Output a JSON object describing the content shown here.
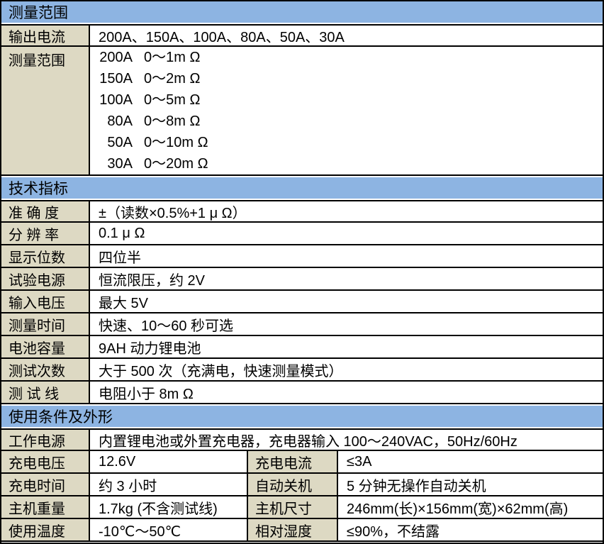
{
  "colors": {
    "header_bg": "#8DB4E2",
    "label_bg": "#DDD9C3",
    "border": "#000000"
  },
  "table": {
    "section1": {
      "title": "测量范围",
      "rows": [
        {
          "label": "输出电流",
          "value": "200A、150A、100A、80A、50A、30A"
        }
      ],
      "range_label": "测量范围",
      "ranges": [
        {
          "current": "200A",
          "range": "0～1m Ω"
        },
        {
          "current": "150A",
          "range": "0～2m Ω"
        },
        {
          "current": "100A",
          "range": "0～5m Ω"
        },
        {
          "current": "80A",
          "range": "0～8m Ω"
        },
        {
          "current": "50A",
          "range": "0～10m Ω"
        },
        {
          "current": "30A",
          "range": "0～20m Ω"
        }
      ]
    },
    "section2": {
      "title": "技术指标",
      "rows": [
        {
          "label": "准 确 度",
          "value": "±（读数×0.5%+1 μ Ω）"
        },
        {
          "label": "分 辨 率",
          "value": "0.1 μ Ω"
        },
        {
          "label": "显示位数",
          "value": "四位半"
        },
        {
          "label": "试验电源",
          "value": "恒流限压，约 2V"
        },
        {
          "label": "输入电压",
          "value": "最大 5V"
        },
        {
          "label": "测量时间",
          "value": "快速、10～60 秒可选"
        },
        {
          "label": "电池容量",
          "value": "9AH 动力锂电池"
        },
        {
          "label": "测试次数",
          "value": "大于 500 次（充满电，快速测量模式）"
        },
        {
          "label": "测 试 线",
          "value": "电阻小于 8m Ω"
        }
      ]
    },
    "section3": {
      "title": "使用条件及外形",
      "full_rows": [
        {
          "label": "工作电源",
          "value": "内置锂电池或外置充电器，充电器输入 100～240VAC，50Hz/60Hz"
        }
      ],
      "pair_rows": [
        {
          "label1": "充电电压",
          "value1": "12.6V",
          "label2": "充电电流",
          "value2": "≤3A"
        },
        {
          "label1": "充电时间",
          "value1": "约 3 小时",
          "label2": "自动关机",
          "value2": "5 分钟无操作自动关机"
        },
        {
          "label1": "主机重量",
          "value1": "1.7kg (不含测试线)",
          "label2": "主机尺寸",
          "value2": "246mm(长)×156mm(宽)×62mm(高)"
        },
        {
          "label1": "使用温度",
          "value1": "-10℃～50℃",
          "label2": "相对湿度",
          "value2": "≤90%，不结露"
        }
      ]
    }
  }
}
